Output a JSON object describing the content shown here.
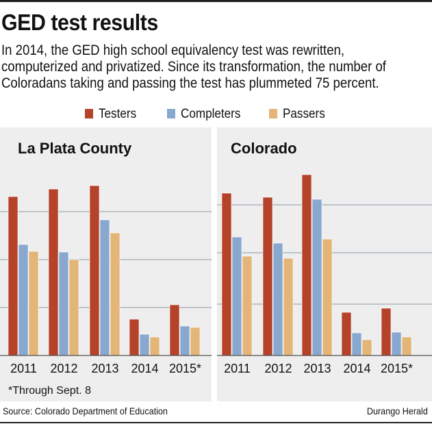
{
  "header": {
    "title": "GED test results",
    "subtitle_lines": [
      "In 2014, the GED high school equivalency test was rewritten,",
      "computerized and privatized. Since its transformation, the number of",
      "Coloradans taking and passing the test has plummeted 75 percent."
    ]
  },
  "legend": [
    {
      "label": "Testers",
      "color": "#b5432a"
    },
    {
      "label": "Completers",
      "color": "#88a8d0"
    },
    {
      "label": "Passers",
      "color": "#e3b577"
    }
  ],
  "chart_data": [
    {
      "type": "bar",
      "title": "La Plata County",
      "categories": [
        "2011",
        "2012",
        "2013",
        "2014",
        "2015*"
      ],
      "ylim": [
        0,
        290
      ],
      "grid": true,
      "gridlines": [
        70,
        140,
        210
      ],
      "series": [
        {
          "name": "Testers",
          "values": [
            232,
            243,
            248,
            53,
            74
          ]
        },
        {
          "name": "Completers",
          "values": [
            162,
            151,
            198,
            31,
            43
          ]
        },
        {
          "name": "Passers",
          "values": [
            152,
            140,
            179,
            27,
            41
          ]
        }
      ]
    },
    {
      "type": "bar",
      "title": "Colorado",
      "categories": [
        "2011",
        "2012",
        "2013",
        "2014",
        "2015*"
      ],
      "ylim": [
        0,
        290
      ],
      "grid": true,
      "gridlines": [
        75,
        150,
        220
      ],
      "series": [
        {
          "name": "Testers",
          "values": [
            237,
            231,
            264,
            63,
            69
          ]
        },
        {
          "name": "Completers",
          "values": [
            173,
            164,
            228,
            33,
            34
          ]
        },
        {
          "name": "Passers",
          "values": [
            145,
            142,
            170,
            23,
            27
          ]
        }
      ]
    }
  ],
  "footnote": "*Through Sept. 8",
  "source": "Source: Colorado Department of Education",
  "credit": "Durango Herald"
}
